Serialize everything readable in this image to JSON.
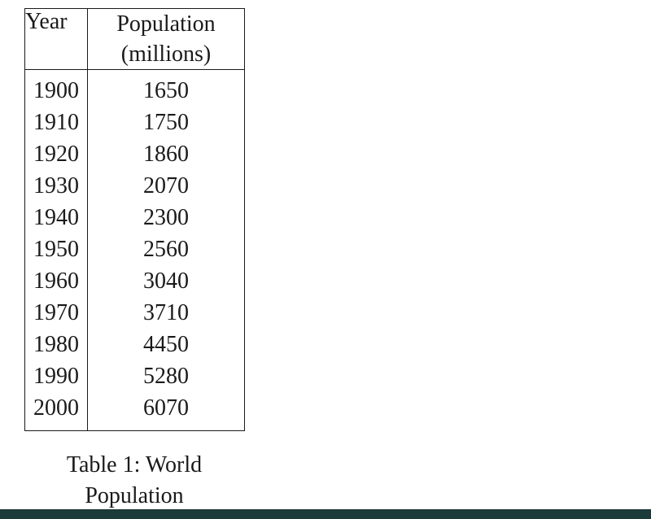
{
  "table": {
    "header": {
      "year_label": "Year",
      "population_label_line1": "Population",
      "population_label_line2": "(millions)"
    },
    "columns": [
      "Year",
      "Population (millions)"
    ],
    "rows": [
      {
        "year": "1900",
        "population": "1650"
      },
      {
        "year": "1910",
        "population": "1750"
      },
      {
        "year": "1920",
        "population": "1860"
      },
      {
        "year": "1930",
        "population": "2070"
      },
      {
        "year": "1940",
        "population": "2300"
      },
      {
        "year": "1950",
        "population": "2560"
      },
      {
        "year": "1960",
        "population": "3040"
      },
      {
        "year": "1970",
        "population": "3710"
      },
      {
        "year": "1980",
        "population": "4450"
      },
      {
        "year": "1990",
        "population": "5280"
      },
      {
        "year": "2000",
        "population": "6070"
      }
    ]
  },
  "caption": {
    "line1": "Table 1:  World",
    "line2": "Population"
  },
  "colors": {
    "background": "#ffffff",
    "border": "#1a1a1a",
    "bottom_bar": "#1b3a3a"
  }
}
